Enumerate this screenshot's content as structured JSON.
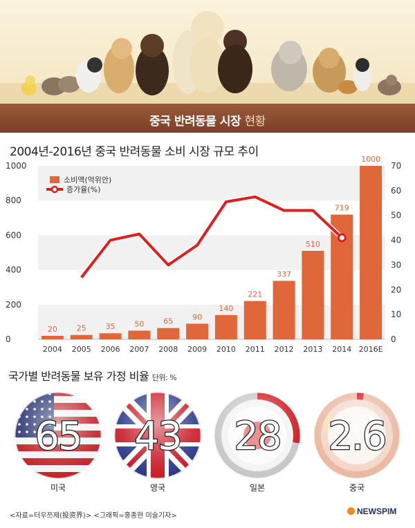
{
  "banner": {
    "title_bold": "중국 반려동물 시장",
    "title_light": "현황"
  },
  "chart_title": "2004년-2016년 중국 반려동물 소비 시장 규모 추이",
  "chart_data": {
    "type": "bar",
    "categories": [
      "2004",
      "2005",
      "2006",
      "2007",
      "2008",
      "2009",
      "2010",
      "2011",
      "2012",
      "2013",
      "2014",
      "2016E"
    ],
    "series": [
      {
        "name": "소비액(억위안)",
        "type": "bar",
        "axis": "left",
        "values": [
          20,
          25,
          35,
          50,
          65,
          90,
          140,
          221,
          337,
          510,
          719,
          1000
        ],
        "color": "#e0673a"
      },
      {
        "name": "증가율(%)",
        "type": "line",
        "axis": "right",
        "values": [
          null,
          25,
          40,
          42.5,
          30,
          38,
          55.5,
          57.5,
          52,
          52,
          41,
          null
        ],
        "color": "#e01e1e"
      }
    ],
    "y_left": {
      "ticks": [
        0,
        200,
        400,
        600,
        800,
        1000
      ],
      "ylim": [
        0,
        1000
      ]
    },
    "y_right": {
      "ticks": [
        0,
        10,
        20,
        30,
        40,
        50,
        60,
        70
      ],
      "ylim": [
        0,
        70
      ]
    },
    "legend_position": "top-left",
    "grid": "alternating bands"
  },
  "section2": {
    "title": "국가별 반려동물 보유 가정 비율",
    "unit": "단위: %"
  },
  "countries": [
    {
      "name": "미국",
      "value": "65",
      "percent": 65
    },
    {
      "name": "영국",
      "value": "43",
      "percent": 43
    },
    {
      "name": "일본",
      "value": "28",
      "percent": 28
    },
    {
      "name": "중국",
      "value": "2.6",
      "percent": 2.6
    }
  ],
  "source": "<자료=터우쯔제(投资界)> <그래픽=홍종현 미술기자>",
  "logo": "NEWSPIM"
}
